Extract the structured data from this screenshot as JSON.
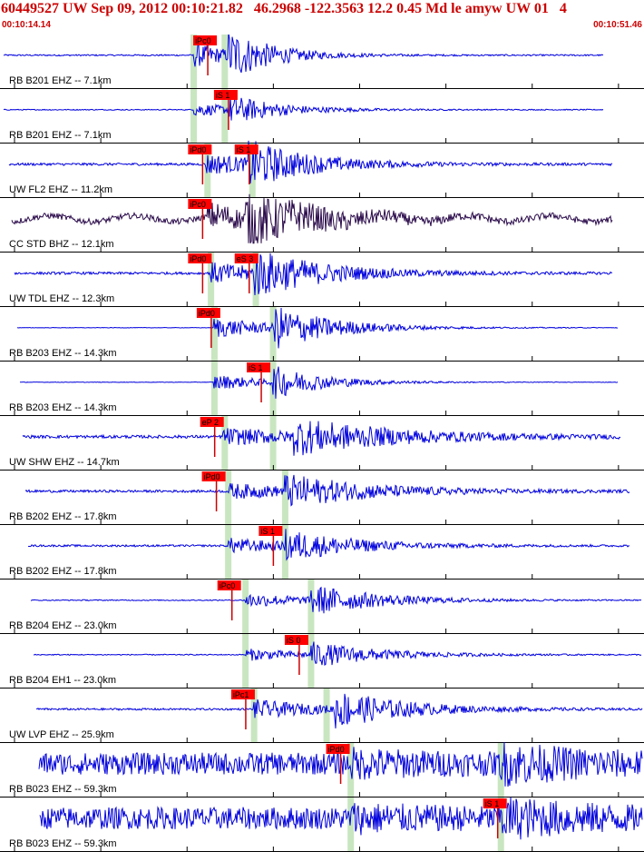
{
  "header": {
    "title": "60449527 UW Sep 09, 2012 00:10:21.82   46.2968 -122.3563 12.2 0.45 Md le amyw UW 01   4",
    "start_time": "00:10:14.14",
    "end_time": "00:10:51.46"
  },
  "colors": {
    "trace": "#0000dd",
    "broadband_trace": "#2a0a4a",
    "pick_box": "#ff0000",
    "pick_line": "#cc0000",
    "phase_shade": "#c8e6c0",
    "grid": "#000000"
  },
  "chart_data": {
    "type": "line",
    "title": "60449527 UW Sep 09, 2012 00:10:21.82   46.2968 -122.3563 12.2 0.45 Md le amyw UW 01   4",
    "xlim": [
      "00:10:14.14",
      "00:10:51.46"
    ],
    "x_seconds_range": [
      0,
      37.32
    ],
    "tick_interval_seconds": 5,
    "grid": false,
    "series": [
      {
        "name": "RB B201 EHZ -- 7.1km",
        "picks": [
          {
            "label": "iPc0",
            "t": 11.2
          }
        ],
        "shade": [
          11.2,
          13.0
        ],
        "trace_end": 35.0,
        "onset": 11.2,
        "s_onset": 13.2,
        "noise": 0.03,
        "peak": 0.9,
        "decay": 2.5,
        "bb": false
      },
      {
        "name": "RB B201 EHZ -- 7.1km",
        "picks": [
          {
            "label": "iS 1",
            "t": 12.4
          }
        ],
        "shade": [
          11.2,
          13.0
        ],
        "trace_end": 35.0,
        "onset": 11.2,
        "s_onset": 13.2,
        "noise": 0.02,
        "peak": 0.5,
        "decay": 3.0,
        "bb": false
      },
      {
        "name": "UW FL2 EHZ -- 11.2km",
        "picks": [
          {
            "label": "iPd0",
            "t": 10.9
          },
          {
            "label": "iS 1",
            "t": 13.6
          }
        ],
        "shade": [
          12.0,
          14.6
        ],
        "trace_end": 35.5,
        "onset": 11.9,
        "s_onset": 14.4,
        "noise": 0.05,
        "peak": 0.8,
        "decay": 3.5,
        "bb": false
      },
      {
        "name": "CC STD BHZ -- 12.1km",
        "picks": [
          {
            "label": "iPc0",
            "t": 10.9
          }
        ],
        "shade": [],
        "trace_end": 35.5,
        "onset": 12.0,
        "s_onset": 14.2,
        "noise": 0.12,
        "peak": 0.9,
        "decay": 4.0,
        "bb": true
      },
      {
        "name": "UW TDL EHZ -- 12.3km",
        "picks": [
          {
            "label": "iPd0",
            "t": 10.9
          },
          {
            "label": "eS 3",
            "t": 13.6
          }
        ],
        "shade": [
          12.2,
          14.8
        ],
        "trace_end": 35.5,
        "onset": 12.1,
        "s_onset": 14.7,
        "noise": 0.05,
        "peak": 0.8,
        "decay": 4.0,
        "bb": false
      },
      {
        "name": "RB B203 EHZ -- 14.3km",
        "picks": [
          {
            "label": "iPd0",
            "t": 11.4
          }
        ],
        "shade": [
          12.4,
          15.8
        ],
        "trace_end": 35.8,
        "onset": 12.4,
        "s_onset": 15.8,
        "noise": 0.01,
        "peak": 0.8,
        "decay": 3.5,
        "bb": false
      },
      {
        "name": "RB B203 EHZ -- 14.3km",
        "picks": [
          {
            "label": "iS 1",
            "t": 14.3
          }
        ],
        "shade": [
          12.4,
          15.8
        ],
        "trace_end": 35.8,
        "onset": 12.4,
        "s_onset": 15.8,
        "noise": 0.01,
        "peak": 0.6,
        "decay": 3.0,
        "bb": false
      },
      {
        "name": "UW SHW EHZ -- 14.7km",
        "picks": [
          {
            "label": "eP 2",
            "t": 11.6
          }
        ],
        "shade": [
          13.0,
          15.8
        ],
        "trace_end": 36.0,
        "onset": 12.9,
        "s_onset": 17.0,
        "noise": 0.06,
        "peak": 0.6,
        "decay": 6.0,
        "bb": false
      },
      {
        "name": "RB B202 EHZ -- 17.8km",
        "picks": [
          {
            "label": "iPd0",
            "t": 11.7
          }
        ],
        "shade": [
          13.2,
          16.5
        ],
        "trace_end": 36.5,
        "onset": 13.2,
        "s_onset": 16.5,
        "noise": 0.05,
        "peak": 0.55,
        "decay": 5.0,
        "bb": false
      },
      {
        "name": "RB B202 EHZ -- 17.8km",
        "picks": [
          {
            "label": "iS 1",
            "t": 15.0
          }
        ],
        "shade": [
          13.2,
          16.5
        ],
        "trace_end": 36.5,
        "onset": 13.2,
        "s_onset": 16.5,
        "noise": 0.04,
        "peak": 0.55,
        "decay": 4.0,
        "bb": false
      },
      {
        "name": "RB B204 EHZ -- 23.0km",
        "picks": [
          {
            "label": "iPc0",
            "t": 12.6
          }
        ],
        "shade": [
          14.2,
          18.0
        ],
        "trace_end": 37.2,
        "onset": 14.2,
        "s_onset": 18.0,
        "noise": 0.02,
        "peak": 0.55,
        "decay": 4.0,
        "bb": false
      },
      {
        "name": "RB B204 EH1 -- 23.0km",
        "picks": [
          {
            "label": "iS 0",
            "t": 16.5
          }
        ],
        "shade": [
          14.2,
          18.0
        ],
        "trace_end": 37.2,
        "onset": 14.2,
        "s_onset": 18.0,
        "noise": 0.02,
        "peak": 0.45,
        "decay": 4.0,
        "bb": false
      },
      {
        "name": "UW LVP EHZ -- 25.9km",
        "picks": [
          {
            "label": "iPc1",
            "t": 13.4
          }
        ],
        "shade": [
          14.7,
          18.9
        ],
        "trace_end": 37.5,
        "onset": 14.7,
        "s_onset": 19.3,
        "noise": 0.04,
        "peak": 0.7,
        "decay": 4.0,
        "bb": false
      },
      {
        "name": "RB B023 EHZ -- 59.3km",
        "picks": [
          {
            "label": "iPd0",
            "t": 18.9
          }
        ],
        "shade": [
          20.3,
          29.0
        ],
        "trace_end": 37.32,
        "onset": 20.3,
        "s_onset": 29.0,
        "noise": 0.45,
        "peak": 0.5,
        "decay": 5.0,
        "bb": false
      },
      {
        "name": "RB B023 EHZ -- 59.3km",
        "picks": [
          {
            "label": "iS 1",
            "t": 28.0
          }
        ],
        "shade": [
          20.3,
          29.0
        ],
        "trace_end": 37.32,
        "onset": 20.3,
        "s_onset": 29.0,
        "noise": 0.45,
        "peak": 0.5,
        "decay": 5.0,
        "bb": false
      }
    ]
  }
}
